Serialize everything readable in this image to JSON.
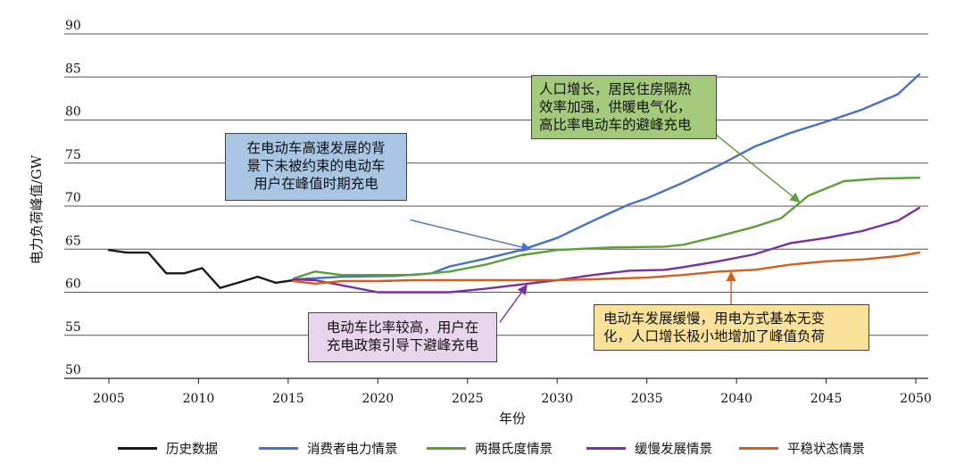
{
  "chart_data": {
    "type": "line",
    "ylabel": "电力负荷峰值/GW",
    "xlabel": "年份",
    "xlim": [
      2005,
      2050
    ],
    "ylim": [
      50,
      90
    ],
    "xticks": [
      "2005",
      "2010",
      "2015",
      "2020",
      "2025",
      "2030",
      "2035",
      "2040",
      "2045",
      "2050"
    ],
    "yticks": [
      "50",
      "55",
      "60",
      "65",
      "70",
      "75",
      "80",
      "85",
      "90"
    ],
    "grid": "horizontal",
    "series": [
      {
        "name": "历史数据",
        "color": "#1a1a1a",
        "points": [
          [
            2005,
            64.9
          ],
          [
            2006,
            64.6
          ],
          [
            2007.2,
            64.6
          ],
          [
            2008.2,
            62.2
          ],
          [
            2009.2,
            62.2
          ],
          [
            2010.2,
            62.8
          ],
          [
            2011.2,
            60.5
          ],
          [
            2012.2,
            61.1
          ],
          [
            2013.3,
            61.8
          ],
          [
            2014.3,
            61.1
          ],
          [
            2015.3,
            61.4
          ]
        ]
      },
      {
        "name": "消费者电力情景",
        "color": "#4472c4",
        "points": [
          [
            2015.5,
            61.5
          ],
          [
            2018,
            61.8
          ],
          [
            2021,
            61.9
          ],
          [
            2023,
            62.2
          ],
          [
            2024,
            63.0
          ],
          [
            2026,
            63.9
          ],
          [
            2028,
            64.9
          ],
          [
            2030,
            66.3
          ],
          [
            2032,
            68.3
          ],
          [
            2034,
            70.2
          ],
          [
            2035,
            70.9
          ],
          [
            2037,
            72.7
          ],
          [
            2039,
            74.7
          ],
          [
            2041,
            76.9
          ],
          [
            2043,
            78.5
          ],
          [
            2045,
            79.8
          ],
          [
            2047,
            81.2
          ],
          [
            2049,
            83.0
          ],
          [
            2050.2,
            85.3
          ]
        ]
      },
      {
        "name": "两摄氏度情景",
        "color": "#5c9e3a",
        "points": [
          [
            2015.3,
            61.6
          ],
          [
            2016.5,
            62.4
          ],
          [
            2018,
            62.0
          ],
          [
            2020,
            62.0
          ],
          [
            2022,
            62.0
          ],
          [
            2024,
            62.4
          ],
          [
            2026,
            63.2
          ],
          [
            2028,
            64.3
          ],
          [
            2030,
            64.9
          ],
          [
            2033,
            65.2
          ],
          [
            2036,
            65.3
          ],
          [
            2037,
            65.5
          ],
          [
            2039,
            66.5
          ],
          [
            2041,
            67.6
          ],
          [
            2042.5,
            68.6
          ],
          [
            2044,
            71.2
          ],
          [
            2046,
            72.9
          ],
          [
            2048,
            73.2
          ],
          [
            2050.2,
            73.3
          ]
        ]
      },
      {
        "name": "缓慢发展情景",
        "color": "#7b2fa0",
        "points": [
          [
            2015.3,
            61.5
          ],
          [
            2016.5,
            61.4
          ],
          [
            2018,
            60.8
          ],
          [
            2020,
            60.0
          ],
          [
            2022,
            60.0
          ],
          [
            2024,
            60.0
          ],
          [
            2026,
            60.4
          ],
          [
            2028,
            60.9
          ],
          [
            2030,
            61.4
          ],
          [
            2032,
            62.0
          ],
          [
            2034,
            62.5
          ],
          [
            2036,
            62.6
          ],
          [
            2037,
            62.9
          ],
          [
            2039,
            63.6
          ],
          [
            2041,
            64.4
          ],
          [
            2043,
            65.7
          ],
          [
            2045,
            66.3
          ],
          [
            2047,
            67.1
          ],
          [
            2049,
            68.3
          ],
          [
            2050.2,
            69.8
          ]
        ]
      },
      {
        "name": "平稳状态情景",
        "color": "#d45f1c",
        "points": [
          [
            2015.3,
            61.3
          ],
          [
            2016.5,
            61.0
          ],
          [
            2018,
            61.3
          ],
          [
            2020,
            61.3
          ],
          [
            2022,
            61.4
          ],
          [
            2024,
            61.4
          ],
          [
            2026,
            61.4
          ],
          [
            2028,
            61.4
          ],
          [
            2030,
            61.4
          ],
          [
            2032,
            61.5
          ],
          [
            2035,
            61.7
          ],
          [
            2037,
            62.0
          ],
          [
            2039,
            62.4
          ],
          [
            2041,
            62.6
          ],
          [
            2043,
            63.2
          ],
          [
            2045,
            63.6
          ],
          [
            2047,
            63.8
          ],
          [
            2049,
            64.2
          ],
          [
            2050.2,
            64.6
          ]
        ]
      }
    ],
    "arrows": [
      {
        "from": [
          2021.8,
          68.4
        ],
        "to": [
          2028.5,
          65.0
        ],
        "color": "#4472c4"
      },
      {
        "from": [
          2038.8,
          78.4
        ],
        "to": [
          2043.5,
          70.5
        ],
        "color": "#5c9e3a"
      },
      {
        "from": [
          2026.8,
          56.5
        ],
        "to": [
          2028.3,
          60.8
        ],
        "color": "#7b2fa0"
      },
      {
        "from": [
          2039.7,
          57.0
        ],
        "to": [
          2039.7,
          62.3
        ],
        "color": "#d45f1c"
      }
    ]
  },
  "annotations": {
    "blue": [
      "在电动车高速发展的背",
      "景下未被约束的电动车",
      "用户在峰值时期充电"
    ],
    "green": [
      "人口增长，居民住房隔热",
      "效率加强，供暖电气化，",
      "高比率电动车的避峰充电"
    ],
    "purple": [
      "电动车比率较高，用户在",
      "充电政策引导下避峰充电"
    ],
    "yellow": [
      "电动车发展缓慢，用电方式基本无变",
      "化，人口增长极小地增加了峰值负荷"
    ]
  }
}
